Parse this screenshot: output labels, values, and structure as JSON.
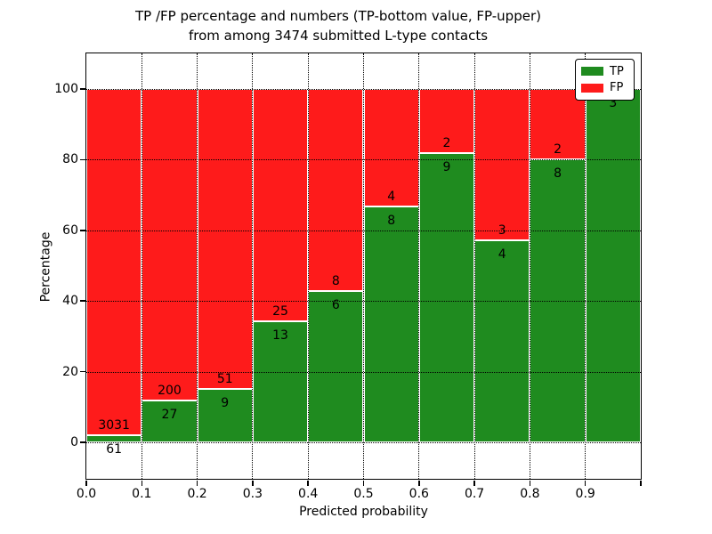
{
  "figure": {
    "title_line1": "TP /FP percentage and numbers (TP-bottom value, FP-upper)",
    "title_line2": "from among 3474 submitted L-type contacts",
    "xlabel": "Predicted probability",
    "ylabel": "Percentage"
  },
  "legend": {
    "position": "upper right",
    "items": [
      {
        "label": "TP",
        "color": "#1f8b1f"
      },
      {
        "label": "FP",
        "color": "#fe1b1b"
      }
    ]
  },
  "colors": {
    "tp_green": "#1f8b1f",
    "fp_red": "#fe1b1b",
    "bar_edge": "#ffffff",
    "grid": "#000000",
    "background": "#ffffff"
  },
  "chart_data": {
    "type": "bar",
    "stacked": true,
    "normalized_to_percent": true,
    "title": "TP /FP percentage and numbers (TP-bottom value, FP-upper)\nfrom among 3474 submitted L-type contacts",
    "xlabel": "Predicted probability",
    "ylabel": "Percentage",
    "total_submitted_contacts": 3474,
    "x_tick_labels": [
      "0.0",
      "0.1",
      "0.2",
      "0.3",
      "0.4",
      "0.5",
      "0.6",
      "0.7",
      "0.8",
      "0.9"
    ],
    "y_ticks": [
      0,
      20,
      40,
      60,
      80,
      100
    ],
    "xlim": [
      0.0,
      1.0
    ],
    "ylim": [
      -10.8,
      110.3
    ],
    "grid": true,
    "legend_position": "upper right",
    "bins": [
      {
        "x_start": 0.0,
        "x_end": 0.1,
        "tp_count": 61,
        "fp_count": 3031,
        "tp_percent": 1.97,
        "fp_percent": 98.03,
        "fp_label_visible": true
      },
      {
        "x_start": 0.1,
        "x_end": 0.2,
        "tp_count": 27,
        "fp_count": 200,
        "tp_percent": 11.89,
        "fp_percent": 88.11,
        "fp_label_visible": true
      },
      {
        "x_start": 0.2,
        "x_end": 0.3,
        "tp_count": 9,
        "fp_count": 51,
        "tp_percent": 15.0,
        "fp_percent": 85.0,
        "fp_label_visible": true
      },
      {
        "x_start": 0.3,
        "x_end": 0.4,
        "tp_count": 13,
        "fp_count": 25,
        "tp_percent": 34.21,
        "fp_percent": 65.79,
        "fp_label_visible": true
      },
      {
        "x_start": 0.4,
        "x_end": 0.5,
        "tp_count": 6,
        "fp_count": 8,
        "tp_percent": 42.86,
        "fp_percent": 57.14,
        "fp_label_visible": true
      },
      {
        "x_start": 0.5,
        "x_end": 0.6,
        "tp_count": 8,
        "fp_count": 4,
        "tp_percent": 66.67,
        "fp_percent": 33.33,
        "fp_label_visible": true
      },
      {
        "x_start": 0.6,
        "x_end": 0.7,
        "tp_count": 9,
        "fp_count": 2,
        "tp_percent": 81.82,
        "fp_percent": 18.18,
        "fp_label_visible": true
      },
      {
        "x_start": 0.7,
        "x_end": 0.8,
        "tp_count": 4,
        "fp_count": 3,
        "tp_percent": 57.14,
        "fp_percent": 42.86,
        "fp_label_visible": true
      },
      {
        "x_start": 0.8,
        "x_end": 0.9,
        "tp_count": 8,
        "fp_count": 2,
        "tp_percent": 80.0,
        "fp_percent": 20.0,
        "fp_label_visible": true
      },
      {
        "x_start": 0.9,
        "x_end": 1.0,
        "tp_count": 3,
        "fp_count": 0,
        "tp_percent": 100.0,
        "fp_percent": 0.0,
        "fp_label_visible": false
      }
    ],
    "series": [
      {
        "name": "TP",
        "color": "#1f8b1f",
        "counts": [
          61,
          27,
          9,
          13,
          6,
          8,
          9,
          4,
          8,
          3
        ],
        "values_percent": [
          1.97,
          11.89,
          15.0,
          34.21,
          42.86,
          66.67,
          81.82,
          57.14,
          80.0,
          100.0
        ]
      },
      {
        "name": "FP",
        "color": "#fe1b1b",
        "counts": [
          3031,
          200,
          51,
          25,
          8,
          4,
          2,
          3,
          2,
          0
        ],
        "values_percent": [
          98.03,
          88.11,
          85.0,
          65.79,
          57.14,
          33.33,
          18.18,
          42.86,
          20.0,
          0.0
        ]
      }
    ]
  }
}
